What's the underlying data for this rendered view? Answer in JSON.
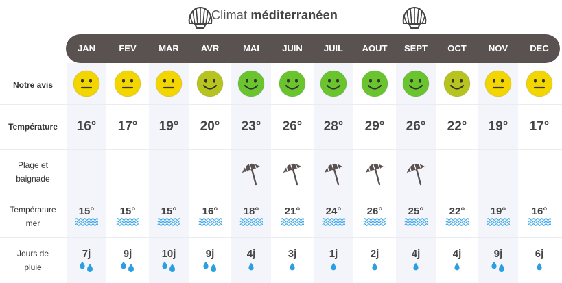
{
  "title": {
    "prefix": "Climat",
    "bold": "méditerranéen"
  },
  "rows": {
    "avis": "Notre avis",
    "temp": "Température",
    "plage_1": "Plage et",
    "plage_2": "baignade",
    "mer_1": "Température",
    "mer_2": "mer",
    "pluie_1": "Jours de",
    "pluie_2": "pluie"
  },
  "colors": {
    "bar": "#5a5251",
    "yellow": "#f3d600",
    "olive": "#b8c41e",
    "green": "#6ac42e",
    "wave": "#3fa9e8",
    "drop": "#2c9fe3",
    "umbrella": "#5a5251"
  },
  "months": [
    {
      "name": "JAN",
      "mood": "neutral",
      "mood_color": "yellow",
      "temp": "16°",
      "beach": false,
      "sea": "15°",
      "rain": "7j",
      "drops": 2
    },
    {
      "name": "FEV",
      "mood": "neutral",
      "mood_color": "yellow",
      "temp": "17°",
      "beach": false,
      "sea": "15°",
      "rain": "9j",
      "drops": 2
    },
    {
      "name": "MAR",
      "mood": "neutral",
      "mood_color": "yellow",
      "temp": "19°",
      "beach": false,
      "sea": "15°",
      "rain": "10j",
      "drops": 2
    },
    {
      "name": "AVR",
      "mood": "smile",
      "mood_color": "olive",
      "temp": "20°",
      "beach": false,
      "sea": "16°",
      "rain": "9j",
      "drops": 2
    },
    {
      "name": "MAI",
      "mood": "smile",
      "mood_color": "green",
      "temp": "23°",
      "beach": true,
      "sea": "18°",
      "rain": "4j",
      "drops": 1
    },
    {
      "name": "JUIN",
      "mood": "smile",
      "mood_color": "green",
      "temp": "26°",
      "beach": true,
      "sea": "21°",
      "rain": "3j",
      "drops": 1
    },
    {
      "name": "JUIL",
      "mood": "smile",
      "mood_color": "green",
      "temp": "28°",
      "beach": true,
      "sea": "24°",
      "rain": "1j",
      "drops": 1
    },
    {
      "name": "AOUT",
      "mood": "smile",
      "mood_color": "green",
      "temp": "29°",
      "beach": true,
      "sea": "26°",
      "rain": "2j",
      "drops": 1
    },
    {
      "name": "SEPT",
      "mood": "smile",
      "mood_color": "green",
      "temp": "26°",
      "beach": true,
      "sea": "25°",
      "rain": "4j",
      "drops": 1
    },
    {
      "name": "OCT",
      "mood": "smile",
      "mood_color": "olive",
      "temp": "22°",
      "beach": false,
      "sea": "22°",
      "rain": "4j",
      "drops": 1
    },
    {
      "name": "NOV",
      "mood": "neutral",
      "mood_color": "yellow",
      "temp": "19°",
      "beach": false,
      "sea": "19°",
      "rain": "9j",
      "drops": 2
    },
    {
      "name": "DEC",
      "mood": "neutral",
      "mood_color": "yellow",
      "temp": "17°",
      "beach": false,
      "sea": "16°",
      "rain": "6j",
      "drops": 1
    }
  ]
}
